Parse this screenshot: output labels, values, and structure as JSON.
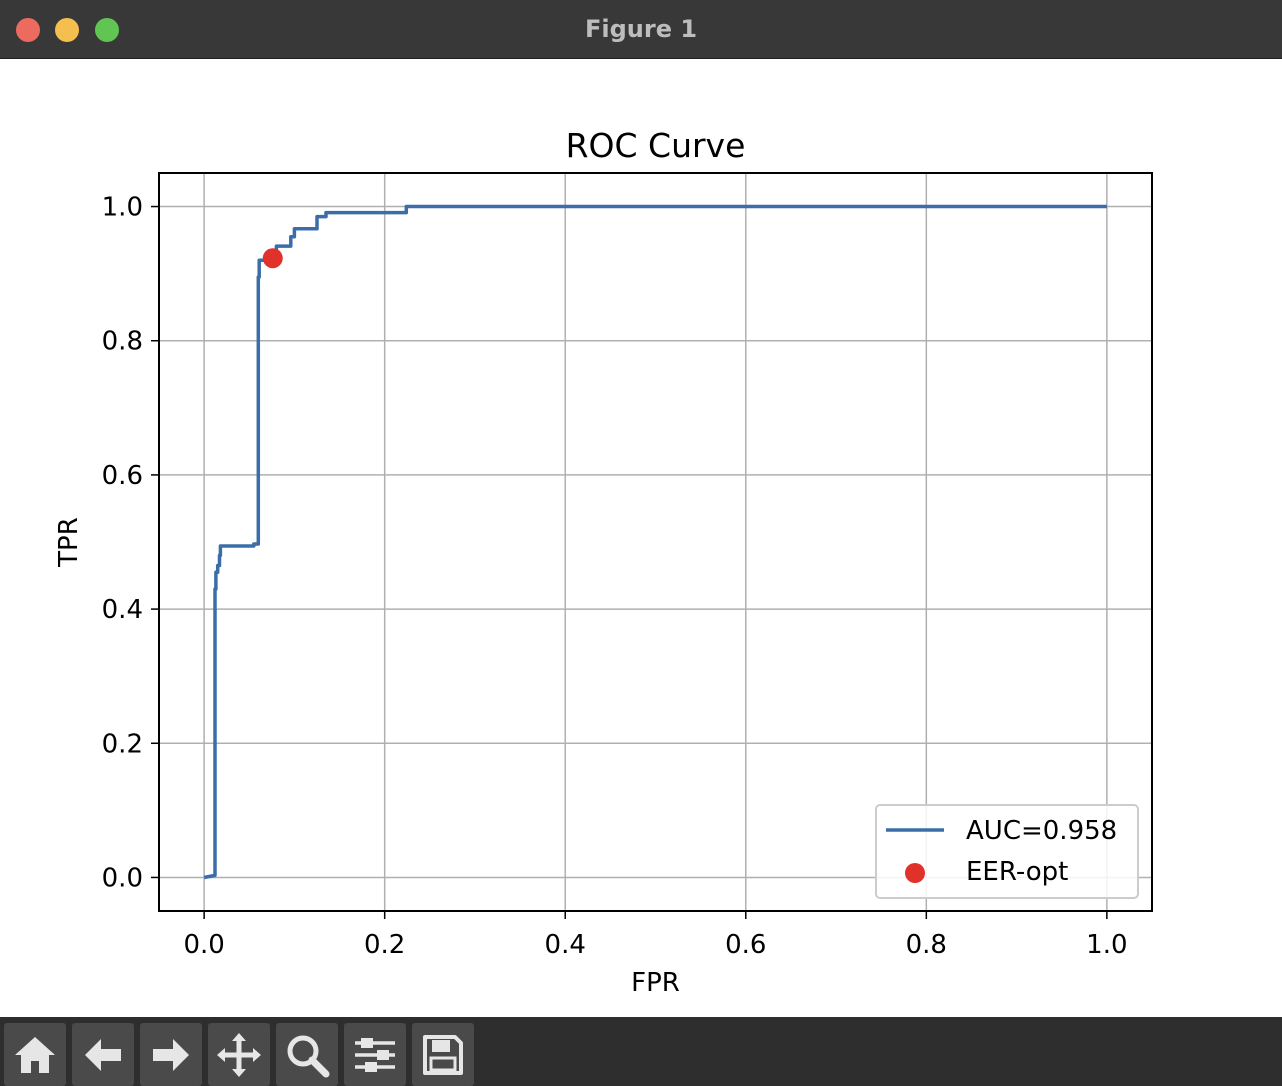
{
  "window": {
    "title": "Figure 1"
  },
  "toolbar": {
    "tools": [
      "home-icon",
      "back-arrow-icon",
      "forward-arrow-icon",
      "pan-icon",
      "zoom-icon",
      "configure-subplots-icon",
      "save-icon"
    ]
  },
  "colors": {
    "curve": "#3b6ea8",
    "marker": "#e0312b",
    "grid": "#b0b0b0"
  },
  "chart_data": {
    "type": "line",
    "title": "ROC Curve",
    "xlabel": "FPR",
    "ylabel": "TPR",
    "xlim": [
      -0.05,
      1.05
    ],
    "ylim": [
      -0.05,
      1.05
    ],
    "xticks": [
      0.0,
      0.2,
      0.4,
      0.6,
      0.8,
      1.0
    ],
    "yticks": [
      0.0,
      0.2,
      0.4,
      0.6,
      0.8,
      1.0
    ],
    "xtick_labels": [
      "0.0",
      "0.2",
      "0.4",
      "0.6",
      "0.8",
      "1.0"
    ],
    "ytick_labels": [
      "0.0",
      "0.2",
      "0.4",
      "0.6",
      "0.8",
      "1.0"
    ],
    "grid": true,
    "legend_position": "lower right",
    "series": [
      {
        "name": "AUC=0.958",
        "kind": "line",
        "x": [
          0.0,
          0.012,
          0.012,
          0.013,
          0.013,
          0.015,
          0.015,
          0.017,
          0.017,
          0.018,
          0.018,
          0.055,
          0.055,
          0.06,
          0.06,
          0.061,
          0.061,
          0.068,
          0.068,
          0.078,
          0.078,
          0.08,
          0.08,
          0.096,
          0.096,
          0.1,
          0.1,
          0.125,
          0.125,
          0.135,
          0.135,
          0.224,
          0.224,
          1.0
        ],
        "y": [
          0.0,
          0.003,
          0.43,
          0.43,
          0.455,
          0.455,
          0.465,
          0.465,
          0.48,
          0.48,
          0.494,
          0.494,
          0.497,
          0.497,
          0.895,
          0.895,
          0.92,
          0.92,
          0.922,
          0.922,
          0.93,
          0.93,
          0.941,
          0.941,
          0.955,
          0.955,
          0.967,
          0.967,
          0.985,
          0.985,
          0.991,
          0.991,
          1.0,
          1.0
        ]
      },
      {
        "name": "EER-opt",
        "kind": "scatter",
        "x": [
          0.076
        ],
        "y": [
          0.923
        ]
      }
    ]
  }
}
